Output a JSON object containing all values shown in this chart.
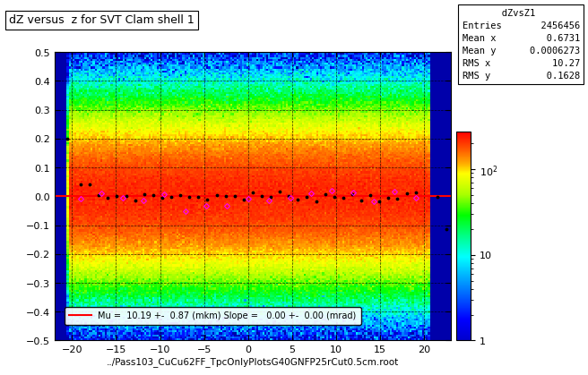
{
  "title": "dZ versus  z for SVT Clam shell 1",
  "xlabel": "../Pass103_CuCu62FF_TpcOnlyPlotsG40GNFP25rCut0.5cm.root",
  "xlim": [
    -22,
    23
  ],
  "ylim": [
    -0.5,
    0.5
  ],
  "xticks": [
    -20,
    -15,
    -10,
    -5,
    0,
    5,
    10,
    15,
    20
  ],
  "yticks": [
    -0.5,
    -0.4,
    -0.3,
    -0.2,
    -0.1,
    0.0,
    0.1,
    0.2,
    0.3,
    0.4,
    0.5
  ],
  "stats_title": "dZvsZ1",
  "stats_entries": "2456456",
  "stats_meanx": "0.6731",
  "stats_meany": "0.0006273",
  "stats_rmsx": "10.27",
  "stats_rmsy": "0.1628",
  "legend_text": "Mu =  10.19 +-  0.87 (mkm) Slope =   0.00 +-  0.00 (mrad)",
  "fit_slope": 0.0,
  "fit_intercept": 0.0,
  "background_color": "#ffffff",
  "colorbar_ticks": [
    1,
    10,
    100
  ],
  "colorbar_labels": [
    "1",
    "10",
    "10$^2$"
  ]
}
